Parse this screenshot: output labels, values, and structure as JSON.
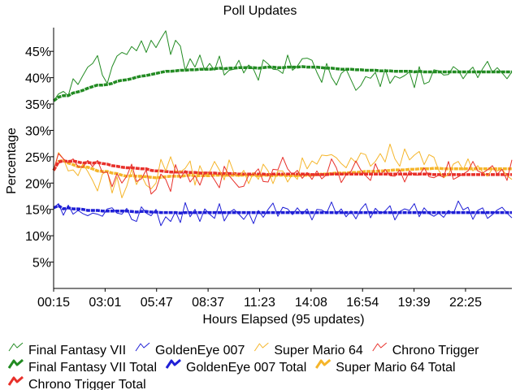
{
  "chart_data": {
    "type": "line",
    "title": "Poll Updates",
    "xlabel": "Hours Elapsed (95 updates)",
    "ylabel": "Percentage",
    "x_tick_labels": [
      "00:15",
      "03:01",
      "05:47",
      "08:37",
      "11:23",
      "14:08",
      "16:54",
      "19:39",
      "22:25"
    ],
    "y_ticks": [
      5,
      10,
      15,
      20,
      25,
      30,
      35,
      40,
      45
    ],
    "y_tick_labels": [
      "5%",
      "10%",
      "15%",
      "20%",
      "25%",
      "30%",
      "35%",
      "40%",
      "45%"
    ],
    "ylim": [
      0,
      49.5
    ],
    "num_updates": 95,
    "grid": false,
    "legend_position": "bottom",
    "series": [
      {
        "name": "Final Fantasy VII",
        "color": "#228b22",
        "style": "thin",
        "values": [
          35.6,
          36.9,
          37.4,
          36.6,
          39.8,
          38.7,
          40.4,
          42.0,
          42.7,
          44.2,
          40.5,
          38.9,
          42.1,
          44.1,
          44.8,
          44.4,
          45.9,
          45.1,
          47.0,
          44.8,
          47.1,
          45.7,
          47.4,
          48.9,
          44.4,
          47.1,
          46.0,
          41.4,
          43.6,
          42.0,
          44.3,
          41.4,
          42.7,
          41.4,
          44.1,
          40.5,
          41.4,
          41.6,
          43.3,
          40.9,
          42.4,
          41.6,
          39.5,
          43.4,
          42.6,
          41.6,
          41.5,
          40.8,
          44.3,
          41.4,
          42.2,
          43.6,
          43.7,
          43.3,
          41.0,
          39.1,
          42.7,
          40.1,
          38.6,
          40.8,
          41.6,
          39.6,
          37.6,
          38.5,
          40.2,
          39.9,
          41.0,
          38.3,
          41.6,
          38.9,
          40.3,
          39.9,
          40.4,
          41.1,
          38.1,
          42.1,
          38.8,
          39.2,
          41.5,
          41.3,
          40.5,
          40.6,
          42.1,
          41.4,
          39.8,
          41.1,
          42.0,
          40.0,
          41.7,
          43.1,
          41.0,
          41.9,
          40.9,
          39.8,
          41.1
        ]
      },
      {
        "name": "GoldenEye 007",
        "color": "#1f1fd6",
        "style": "thin",
        "values": [
          15.3,
          16.1,
          13.9,
          15.8,
          14.1,
          14.8,
          14.2,
          13.8,
          14.3,
          14.1,
          13.7,
          15.1,
          15.3,
          14.3,
          14.1,
          15.2,
          13.1,
          12.7,
          15.5,
          14.3,
          13.8,
          15.0,
          11.9,
          13.6,
          12.7,
          14.6,
          12.5,
          16.3,
          13.6,
          15.0,
          12.7,
          15.1,
          14.1,
          13.3,
          16.1,
          12.8,
          14.4,
          15.0,
          14.1,
          13.1,
          14.4,
          12.3,
          14.8,
          13.5,
          15.0,
          16.2,
          13.7,
          15.4,
          15.1,
          14.0,
          15.3,
          14.1,
          15.1,
          13.0,
          15.0,
          14.9,
          14.3,
          16.4,
          14.1,
          15.1,
          13.6,
          14.7,
          13.2,
          15.0,
          16.1,
          13.4,
          15.2,
          14.2,
          14.7,
          15.7,
          13.0,
          14.6,
          15.1,
          14.8,
          16.1,
          13.6,
          15.3,
          14.2,
          13.7,
          14.3,
          13.5,
          14.8,
          14.2,
          16.6,
          14.9,
          15.4,
          13.1,
          14.8,
          15.3,
          13.3,
          14.0,
          14.9,
          15.4,
          14.3,
          13.4
        ]
      },
      {
        "name": "Super Mario 64",
        "color": "#f5b52a",
        "style": "thin",
        "values": [
          22.4,
          25.8,
          24.6,
          22.3,
          22.5,
          21.4,
          23.6,
          22.2,
          20.5,
          18.5,
          21.7,
          22.3,
          18.1,
          21.2,
          17.2,
          19.4,
          22.6,
          19.7,
          21.5,
          19.6,
          18.9,
          20.0,
          24.5,
          22.3,
          25.0,
          22.3,
          22.1,
          22.8,
          24.2,
          19.6,
          23.3,
          21.3,
          22.1,
          24.1,
          22.5,
          20.6,
          24.4,
          21.9,
          21.2,
          22.4,
          19.9,
          22.0,
          20.7,
          23.6,
          22.3,
          19.9,
          22.3,
          22.3,
          20.2,
          21.7,
          20.7,
          24.8,
          22.7,
          24.2,
          23.6,
          25.3,
          25.2,
          25.4,
          24.8,
          23.7,
          22.9,
          24.8,
          23.9,
          25.7,
          25.4,
          23.2,
          24.1,
          25.6,
          24.0,
          27.4,
          24.6,
          23.2,
          26.5,
          24.4,
          25.3,
          26.0,
          23.5,
          25.4,
          24.9,
          22.4,
          21.0,
          21.7,
          23.6,
          24.1,
          22.5,
          24.6,
          22.3,
          23.3,
          22.1,
          21.3,
          22.7,
          22.3,
          22.6,
          21.4,
          20.7
        ]
      },
      {
        "name": "Chrono Trigger",
        "color": "#e8302a",
        "style": "thin",
        "values": [
          22.4,
          25.6,
          24.6,
          23.9,
          24.6,
          23.1,
          23.0,
          24.3,
          23.1,
          24.3,
          22.0,
          22.1,
          19.3,
          21.8,
          20.0,
          21.3,
          23.6,
          20.3,
          20.8,
          22.5,
          17.9,
          18.8,
          21.7,
          20.7,
          18.4,
          23.5,
          20.9,
          22.4,
          20.2,
          21.4,
          19.6,
          22.1,
          22.0,
          20.6,
          19.1,
          23.2,
          21.4,
          20.3,
          19.2,
          19.4,
          21.5,
          21.7,
          22.7,
          20.3,
          20.2,
          22.6,
          22.5,
          24.9,
          22.7,
          21.6,
          22.4,
          20.9,
          22.0,
          20.7,
          22.3,
          20.8,
          21.6,
          24.6,
          22.9,
          20.1,
          21.6,
          22.2,
          24.2,
          22.5,
          21.4,
          20.5,
          23.7,
          21.5,
          22.6,
          21.4,
          21.3,
          22.5,
          20.2,
          22.3,
          21.5,
          21.5,
          22.9,
          21.2,
          21.0,
          21.5,
          21.1,
          24.1,
          20.7,
          21.2,
          21.7,
          22.3,
          24.1,
          22.3,
          21.9,
          22.5,
          23.3,
          21.7,
          22.6,
          20.5,
          24.4
        ]
      },
      {
        "name": "Final Fantasy VII Total",
        "color": "#228b22",
        "style": "thick",
        "values": [
          35.6,
          36.3,
          36.6,
          36.6,
          37.1,
          37.3,
          37.6,
          38.0,
          38.3,
          38.6,
          38.6,
          38.7,
          38.9,
          39.3,
          39.5,
          39.6,
          39.8,
          40.1,
          40.3,
          40.4,
          40.6,
          40.8,
          41.0,
          41.2,
          41.2,
          41.3,
          41.4,
          41.4,
          41.5,
          41.5,
          41.6,
          41.6,
          41.6,
          41.7,
          41.8,
          41.7,
          41.8,
          41.8,
          41.9,
          41.9,
          41.9,
          41.9,
          41.8,
          41.9,
          42.0,
          42.0,
          41.9,
          41.9,
          42.0,
          42.0,
          42.0,
          42.1,
          42.0,
          42.0,
          42.0,
          41.9,
          41.8,
          41.8,
          41.7,
          41.6,
          41.6,
          41.6,
          41.5,
          41.5,
          41.4,
          41.4,
          41.4,
          41.3,
          41.3,
          41.3,
          41.2,
          41.2,
          41.2,
          41.2,
          41.1,
          41.2,
          41.1,
          41.1,
          41.1,
          41.1,
          41.1,
          41.1,
          41.1,
          41.1,
          41.1,
          41.1,
          41.1,
          41.1,
          41.1,
          41.1,
          41.1,
          41.1,
          41.1,
          41.1,
          41.1
        ]
      },
      {
        "name": "GoldenEye 007 Total",
        "color": "#1f1fd6",
        "style": "thick",
        "values": [
          15.3,
          15.7,
          15.1,
          15.3,
          15.1,
          15.1,
          15.0,
          14.8,
          14.8,
          14.8,
          14.7,
          14.7,
          14.7,
          14.7,
          14.7,
          14.7,
          14.6,
          14.5,
          14.6,
          14.6,
          14.5,
          14.5,
          14.4,
          14.4,
          14.4,
          14.4,
          14.3,
          14.4,
          14.4,
          14.4,
          14.4,
          14.4,
          14.4,
          14.4,
          14.4,
          14.4,
          14.4,
          14.4,
          14.4,
          14.4,
          14.4,
          14.4,
          14.4,
          14.4,
          14.4,
          14.4,
          14.4,
          14.4,
          14.4,
          14.4,
          14.4,
          14.4,
          14.4,
          14.4,
          14.4,
          14.4,
          14.4,
          14.4,
          14.4,
          14.4,
          14.4,
          14.4,
          14.4,
          14.4,
          14.4,
          14.4,
          14.4,
          14.4,
          14.4,
          14.4,
          14.4,
          14.4,
          14.4,
          14.4,
          14.4,
          14.4,
          14.4,
          14.4,
          14.4,
          14.4,
          14.4,
          14.4,
          14.4,
          14.4,
          14.4,
          14.4,
          14.4,
          14.4,
          14.4,
          14.4,
          14.4,
          14.4,
          14.4,
          14.4,
          14.4
        ]
      },
      {
        "name": "Super Mario 64 Total",
        "color": "#f5b52a",
        "style": "thick",
        "values": [
          22.4,
          24.1,
          24.3,
          23.8,
          23.5,
          23.1,
          23.1,
          23.0,
          22.7,
          22.3,
          22.2,
          22.2,
          21.9,
          21.8,
          21.5,
          21.3,
          21.4,
          21.3,
          21.3,
          21.2,
          21.1,
          21.0,
          21.1,
          21.2,
          21.3,
          21.3,
          21.3,
          21.4,
          21.5,
          21.4,
          21.4,
          21.4,
          21.4,
          21.5,
          21.5,
          21.5,
          21.5,
          21.5,
          21.5,
          21.5,
          21.5,
          21.5,
          21.4,
          21.5,
          21.5,
          21.4,
          21.5,
          21.5,
          21.4,
          21.4,
          21.4,
          21.5,
          21.5,
          21.5,
          21.6,
          21.7,
          21.7,
          21.8,
          21.9,
          21.9,
          21.9,
          22.0,
          22.0,
          22.1,
          22.2,
          22.2,
          22.2,
          22.3,
          22.3,
          22.4,
          22.5,
          22.5,
          22.5,
          22.6,
          22.6,
          22.7,
          22.7,
          22.7,
          22.8,
          22.8,
          22.7,
          22.7,
          22.7,
          22.7,
          22.7,
          22.7,
          22.7,
          22.7,
          22.7,
          22.7,
          22.7,
          22.7,
          22.7,
          22.7,
          22.7
        ]
      },
      {
        "name": "Chrono Trigger Total",
        "color": "#e8302a",
        "style": "thick",
        "values": [
          22.4,
          24.0,
          24.2,
          24.1,
          24.2,
          24.0,
          23.8,
          23.9,
          23.8,
          23.9,
          23.7,
          23.6,
          23.3,
          23.2,
          23.0,
          22.9,
          22.9,
          22.8,
          22.7,
          22.7,
          22.4,
          22.3,
          22.3,
          22.2,
          22.1,
          22.1,
          22.1,
          22.1,
          22.0,
          22.0,
          21.9,
          21.9,
          21.9,
          21.9,
          21.8,
          21.8,
          21.8,
          21.8,
          21.7,
          21.7,
          21.7,
          21.7,
          21.7,
          21.7,
          21.6,
          21.7,
          21.7,
          21.7,
          21.7,
          21.7,
          21.7,
          21.7,
          21.7,
          21.6,
          21.6,
          21.6,
          21.6,
          21.7,
          21.7,
          21.7,
          21.7,
          21.7,
          21.7,
          21.7,
          21.7,
          21.7,
          21.7,
          21.7,
          21.7,
          21.7,
          21.7,
          21.7,
          21.7,
          21.7,
          21.7,
          21.7,
          21.7,
          21.7,
          21.6,
          21.6,
          21.6,
          21.6,
          21.6,
          21.6,
          21.6,
          21.6,
          21.6,
          21.6,
          21.6,
          21.6,
          21.6,
          21.6,
          21.6,
          21.6,
          21.6
        ]
      }
    ]
  }
}
